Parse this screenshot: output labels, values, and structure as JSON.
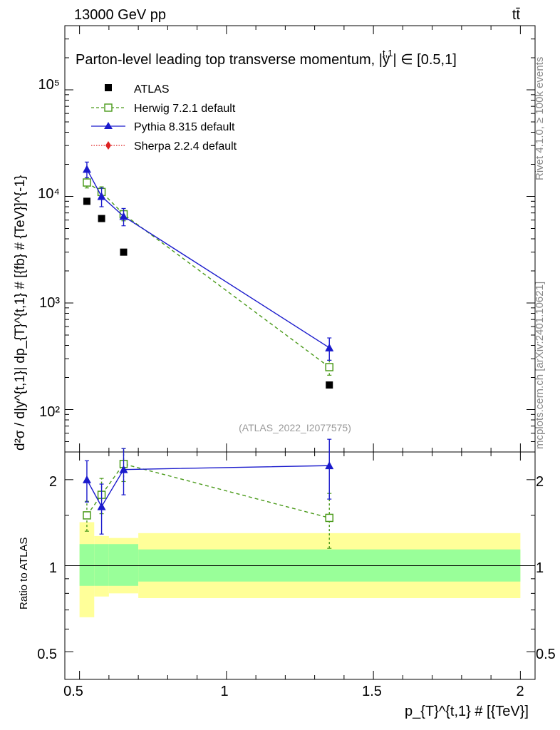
{
  "header": {
    "energy_label": "13000 GeV pp",
    "process_label": "tt̄",
    "title": "Parton-level leading top transverse momentum, |y^{t,1}| ∈ [0.5,1]",
    "title_main": "Parton-level leading top transverse momentum, |",
    "title_sub": "y",
    "title_sup": "t,1",
    "title_tail": "| ∈ [0.5,1]",
    "analysis_id": "(ATLAS_2022_I2077575)"
  },
  "side_text": {
    "rivet": "Rivet 4.1.0, ≥ 100k events",
    "mcplots": "mcplots.cern.ch [arXiv:2401.10621]"
  },
  "axes": {
    "ylabel_main": "d²σ / d|y^{t,1}| dp_{T}^{t,1} # [{fb} # {TeV}]^{-1}",
    "ylabel_ratio": "Ratio to ATLAS",
    "xlabel": "p_{T}^{t,1} # [{TeV}]",
    "x_ticks": [
      "0.5",
      "1",
      "1.5",
      "2"
    ],
    "y_ticks_main": [
      "10²",
      "10³",
      "10⁴",
      "10⁵"
    ],
    "y_ticks_ratio": [
      "0.5",
      "1",
      "2"
    ]
  },
  "legend": [
    {
      "label": "ATLAS",
      "color": "#000000"
    },
    {
      "label": "Herwig 7.2.1 default",
      "color": "#4a9a1a"
    },
    {
      "label": "Pythia 8.315 default",
      "color": "#1a1acc"
    },
    {
      "label": "Sherpa 2.2.4 default",
      "color": "#dd2222"
    }
  ],
  "chart_data": {
    "type": "scatter",
    "title": "Parton-level leading top transverse momentum, |y^{t,1}| ∈ [0.5,1]",
    "xlabel": "p_T^{t,1} [TeV]",
    "ylabel": "d²σ / d|y^{t,1}| dp_T^{t,1} [fb TeV^-1]",
    "xlim": [
      0.45,
      2.05
    ],
    "ylim": [
      40,
      400000
    ],
    "yscale": "log",
    "ratio_ylim": [
      0.4,
      2.5
    ],
    "bins": [
      [
        0.5,
        0.55
      ],
      [
        0.55,
        0.6
      ],
      [
        0.6,
        0.7
      ],
      [
        0.7,
        2.0
      ]
    ],
    "x": [
      0.525,
      0.575,
      0.65,
      1.35
    ],
    "series": [
      {
        "name": "ATLAS",
        "color": "#000000",
        "values": [
          9000,
          6200,
          3000,
          170
        ],
        "band_inner": [
          [
            0.85,
            1.19
          ],
          [
            0.85,
            1.19
          ],
          [
            0.85,
            1.19
          ],
          [
            0.88,
            1.14
          ]
        ],
        "band_outer": [
          [
            0.66,
            1.42
          ],
          [
            0.78,
            1.27
          ],
          [
            0.8,
            1.25
          ],
          [
            0.77,
            1.3
          ]
        ]
      },
      {
        "name": "Herwig 7.2.1 default",
        "color": "#4a9a1a",
        "values": [
          13500,
          11000,
          6800,
          250
        ],
        "errors": [
          1500,
          1300,
          900,
          40
        ],
        "ratio": [
          1.5,
          1.77,
          2.27,
          1.47
        ],
        "ratio_err": [
          0.18,
          0.25,
          0.3,
          0.32
        ]
      },
      {
        "name": "Pythia 8.315 default",
        "color": "#1a1acc",
        "values": [
          18000,
          10000,
          6500,
          380
        ],
        "errors": [
          3000,
          2000,
          1200,
          90
        ],
        "ratio": [
          2.0,
          1.61,
          2.17,
          2.24
        ],
        "ratio_err": [
          0.33,
          0.32,
          0.4,
          0.53
        ]
      },
      {
        "name": "Sherpa 2.2.4 default",
        "color": "#dd2222",
        "values": [],
        "ratio": []
      }
    ]
  }
}
